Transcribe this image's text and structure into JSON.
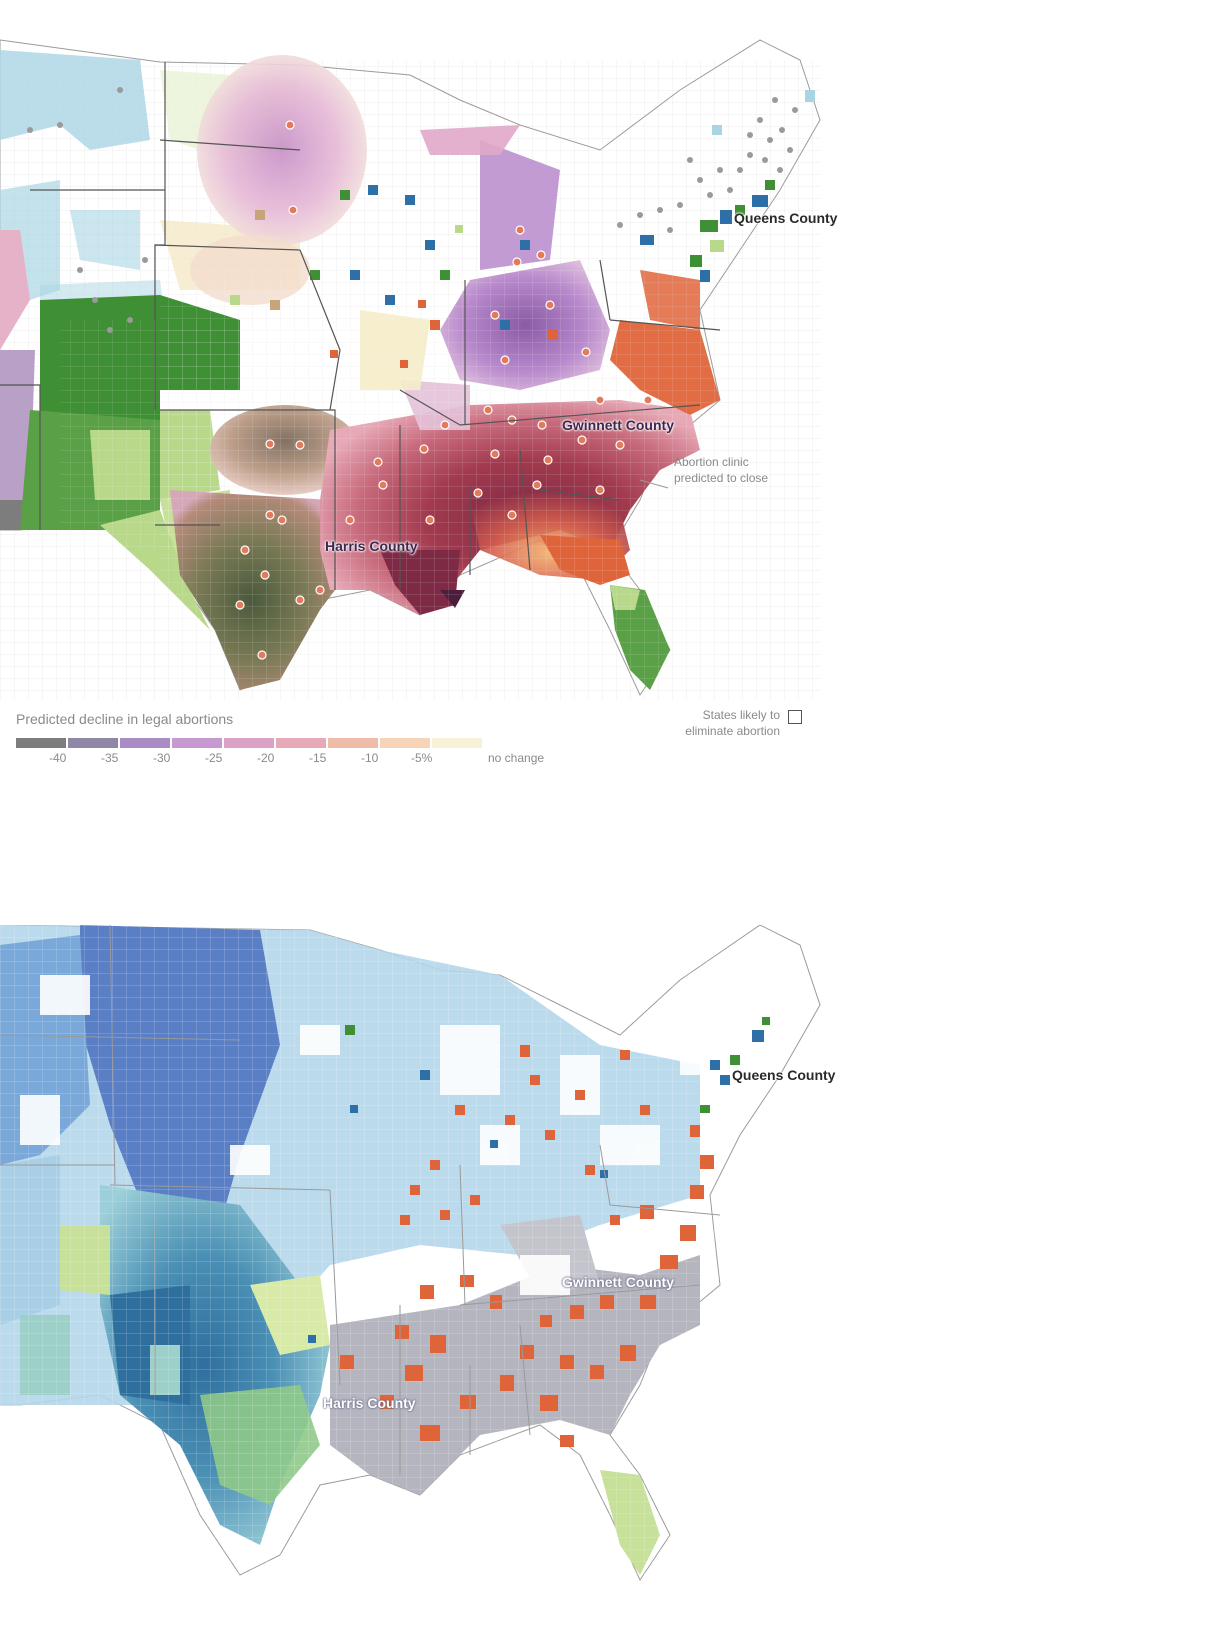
{
  "top_map": {
    "labels": {
      "queens": "Queens County",
      "gwinnett": "Gwinnett County",
      "harris": "Harris County"
    },
    "annotation": {
      "line1": "Abortion clinic",
      "line2": "predicted to close"
    }
  },
  "legend": {
    "title": "Predicted decline in legal abortions",
    "ticks": [
      "-40",
      "-35",
      "-30",
      "-25",
      "-20",
      "-15",
      "-10",
      "-5%",
      "no change"
    ],
    "colors": [
      "#7d7d7d",
      "#8f86a8",
      "#a98bc6",
      "#c69ad0",
      "#dca1c6",
      "#e6a9b8",
      "#f0bcaa",
      "#f7d4b8",
      "#f7f1d6"
    ],
    "states_key": {
      "line1": "States likely to",
      "line2": "eliminate abortion"
    }
  },
  "bottom_map": {
    "labels": {
      "queens": "Queens County",
      "gwinnett": "Gwinnett County",
      "harris": "Harris County"
    }
  },
  "colors": {
    "green_dark": "#3f8f35",
    "green_light": "#b9d98a",
    "orange": "#e0643a",
    "blue_accent": "#2f6fa8",
    "light_blue": "#a9d5e3",
    "deep_red": "#8c2a3e",
    "deep_purple": "#6d3b78",
    "gray_dot": "#9a9a9a"
  }
}
